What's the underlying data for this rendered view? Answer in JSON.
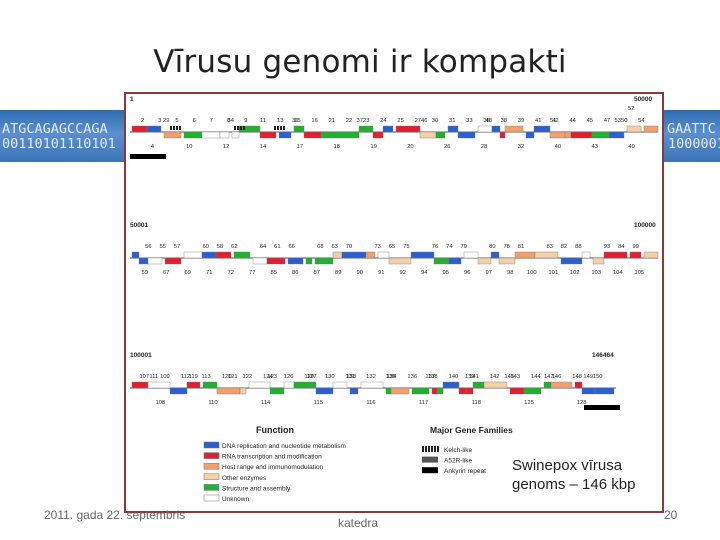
{
  "slide": {
    "title": "Vīrusu genomi ir kompakti",
    "caption_line1": "Swinepox vīrusa",
    "caption_line2": "genoms – 146 kbp",
    "footer_left": "2011. gada 22. septembris",
    "footer_center": "katedra",
    "footer_right": "20"
  },
  "banner": {
    "left_row1": "ATGCAGAGCCAGA",
    "left_row2": "00110101110101",
    "right_row1": "GAATTC",
    "right_row2": "1000001"
  },
  "colors": {
    "dna": "#2b5fd0",
    "rna": "#e02030",
    "host": "#f0a070",
    "other": "#f4cfa8",
    "struct": "#22b030",
    "unknown": "#ffffff",
    "frame": "#8b3a3a",
    "banner": "#3b74b8"
  },
  "genome": {
    "rows": [
      {
        "start_label": "1",
        "end_label": "50000",
        "genes_top": [
          "29",
          "34",
          "36",
          "37",
          "46",
          "48",
          "51",
          "53"
        ],
        "genes_mid": [
          "2",
          "3",
          "5",
          "6",
          "7",
          "8",
          "9",
          "11",
          "13",
          "15",
          "16",
          "21",
          "22",
          "23",
          "24",
          "25",
          "27",
          "30",
          "31",
          "33",
          "35",
          "38",
          "39",
          "41",
          "42",
          "44",
          "45",
          "47",
          "50",
          "54"
        ],
        "genes_bottom": [
          "4",
          "10",
          "12",
          "14",
          "17",
          "18",
          "19",
          "20",
          "26",
          "28",
          "32",
          "40",
          "43",
          "49"
        ],
        "extra_labels": [
          "52"
        ]
      },
      {
        "start_label": "50001",
        "end_label": "100000",
        "genes_top": [
          "55",
          "58",
          "61",
          "63",
          "65",
          "74",
          "78",
          "82",
          "84"
        ],
        "genes_mid": [
          "56",
          "57",
          "60",
          "62",
          "64",
          "66",
          "68",
          "70",
          "73",
          "75",
          "76",
          "79",
          "80",
          "81",
          "83",
          "88",
          "93",
          "99"
        ],
        "genes_bottom": [
          "59",
          "67",
          "69",
          "71",
          "72",
          "77",
          "85",
          "86",
          "87",
          "89",
          "90",
          "91",
          "92",
          "94",
          "95",
          "96",
          "97",
          "98",
          "100",
          "101",
          "102",
          "103",
          "104",
          "105"
        ],
        "extra_labels": []
      },
      {
        "start_label": "100001",
        "end_label": "146464",
        "genes_top": [
          "111",
          "119",
          "121",
          "123",
          "127",
          "133",
          "135",
          "137",
          "139",
          "145",
          "147",
          "149"
        ],
        "genes_mid": [
          "107",
          "109",
          "112",
          "113",
          "120",
          "122",
          "124",
          "126",
          "129",
          "130",
          "131",
          "132",
          "134",
          "136",
          "138",
          "140",
          "141",
          "142",
          "143",
          "144",
          "146",
          "148",
          "150"
        ],
        "genes_bottom": [
          "108",
          "110",
          "114",
          "115",
          "116",
          "117",
          "118",
          "125",
          "128"
        ],
        "extra_labels": []
      }
    ],
    "legend": {
      "function_title": "Function",
      "families_title": "Major Gene Families",
      "function_items": [
        {
          "label": "DNA replication and nucleotide metabolism",
          "color": "#2b5fd0"
        },
        {
          "label": "RNA transcription and modification",
          "color": "#e02030"
        },
        {
          "label": "Host range and immunomodulation",
          "color": "#f0a070"
        },
        {
          "label": "Other enzymes",
          "color": "#f4cfa8"
        },
        {
          "label": "Structure and assembly",
          "color": "#22b030"
        },
        {
          "label": "Unknown",
          "color": "#ffffff"
        }
      ],
      "family_items": [
        {
          "label": "Kelch-like",
          "pattern": "kelch"
        },
        {
          "label": "A52R-like",
          "pattern": "a52r"
        },
        {
          "label": "Ankyrin repeat",
          "pattern": "ankyrin"
        }
      ]
    }
  }
}
